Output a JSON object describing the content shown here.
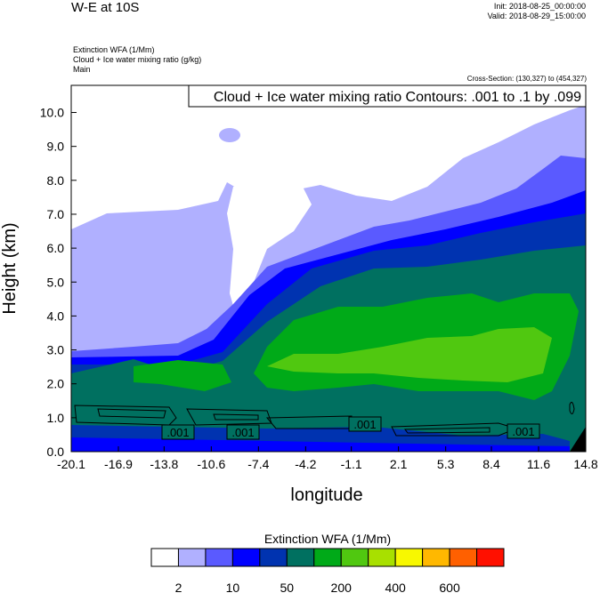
{
  "header": {
    "title": "W-E at 10S",
    "init": "Init: 2018-08-25_00:00:00",
    "valid": "Valid: 2018-08-29_15:00:00",
    "fields": [
      "Extinction WFA   (1/Mm)",
      "Cloud + Ice water mixing ratio   (g/kg)",
      "Main"
    ],
    "cross_section": "Cross-Section: (130,327) to (454,327)"
  },
  "chart_data": {
    "type": "heatmap",
    "title": "W-E at 10S",
    "contour_label": "Cloud + Ice water mixing ratio Contours: .001 to .1 by .099",
    "contour_line_labels": [
      ".001",
      ".001",
      ".001",
      ".001"
    ],
    "xlabel": "longitude",
    "ylabel": "Height (km)",
    "xlim": [
      -20.1,
      14.8
    ],
    "ylim": [
      0,
      10.8
    ],
    "xticks": [
      "-20.1",
      "-16.9",
      "-13.8",
      "-10.6",
      "-7.4",
      "-4.2",
      "-1.1",
      "2.1",
      "5.3",
      "8.4",
      "11.6",
      "14.8"
    ],
    "yticks": [
      "0.0",
      "1.0",
      "2.0",
      "3.0",
      "4.0",
      "5.0",
      "6.0",
      "7.0",
      "8.0",
      "9.0",
      "10.0"
    ],
    "colorbar": {
      "title": "Extinction WFA  (1/Mm)",
      "colors": [
        "#ffffff",
        "#b0b0ff",
        "#5a5aff",
        "#0000ff",
        "#0033b0",
        "#007060",
        "#00aa18",
        "#50c810",
        "#a8e000",
        "#f8f800",
        "#ffb800",
        "#ff6000",
        "#ff1000"
      ],
      "labels": [
        "2",
        "10",
        "50",
        "200",
        "400",
        "600"
      ]
    }
  }
}
